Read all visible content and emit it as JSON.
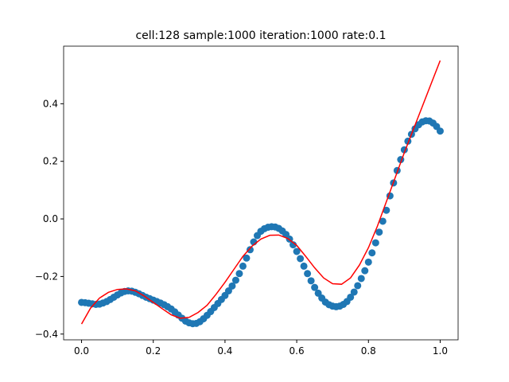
{
  "chart_data": {
    "type": "scatter",
    "title": "cell:128 sample:1000 iteration:1000 rate:0.1",
    "xlim": [
      -0.05,
      1.05
    ],
    "ylim": [
      -0.42,
      0.6
    ],
    "xticks": [
      {
        "value": 0,
        "label": "0.0"
      },
      0.2,
      0.4,
      0.6,
      0.8,
      {
        "value": 1,
        "label": "1.0"
      }
    ],
    "yticks": [
      {
        "value": -0.4,
        "label": "−0.4"
      },
      {
        "value": -0.2,
        "label": "−0.2"
      },
      {
        "value": 0,
        "label": "0.0"
      },
      0.2,
      0.4
    ],
    "series": [
      {
        "type": "scatter",
        "color": "#1f77b4",
        "x": [
          0,
          0.01,
          0.02,
          0.03,
          0.04,
          0.05,
          0.06,
          0.07,
          0.08,
          0.09,
          0.1,
          0.11,
          0.12,
          0.13,
          0.14,
          0.15,
          0.16,
          0.17,
          0.18,
          0.19,
          0.2,
          0.21,
          0.22,
          0.23,
          0.24,
          0.25,
          0.26,
          0.27,
          0.28,
          0.29,
          0.3,
          0.31,
          0.32,
          0.33,
          0.34,
          0.35,
          0.36,
          0.37,
          0.38,
          0.39,
          0.4,
          0.41,
          0.42,
          0.43,
          0.44,
          0.45,
          0.46,
          0.47,
          0.48,
          0.49,
          0.5,
          0.51,
          0.52,
          0.53,
          0.54,
          0.55,
          0.56,
          0.57,
          0.58,
          0.59,
          0.6,
          0.61,
          0.62,
          0.63,
          0.64,
          0.65,
          0.66,
          0.67,
          0.68,
          0.69,
          0.7,
          0.71,
          0.72,
          0.73,
          0.74,
          0.75,
          0.76,
          0.77,
          0.78,
          0.79,
          0.8,
          0.81,
          0.82,
          0.83,
          0.84,
          0.85,
          0.86,
          0.87,
          0.88,
          0.89,
          0.9,
          0.91,
          0.92,
          0.93,
          0.94,
          0.95,
          0.96,
          0.97,
          0.98,
          0.99,
          1
        ],
        "values": [
          -0.29,
          -0.291,
          -0.293,
          -0.295,
          -0.297,
          -0.296,
          -0.292,
          -0.287,
          -0.28,
          -0.272,
          -0.264,
          -0.257,
          -0.252,
          -0.25,
          -0.251,
          -0.255,
          -0.26,
          -0.266,
          -0.272,
          -0.277,
          -0.282,
          -0.287,
          -0.292,
          -0.298,
          -0.305,
          -0.313,
          -0.323,
          -0.334,
          -0.345,
          -0.355,
          -0.361,
          -0.364,
          -0.363,
          -0.357,
          -0.347,
          -0.335,
          -0.322,
          -0.308,
          -0.294,
          -0.28,
          -0.266,
          -0.25,
          -0.233,
          -0.213,
          -0.19,
          -0.164,
          -0.136,
          -0.107,
          -0.08,
          -0.058,
          -0.043,
          -0.034,
          -0.029,
          -0.027,
          -0.028,
          -0.033,
          -0.042,
          -0.054,
          -0.07,
          -0.09,
          -0.113,
          -0.138,
          -0.164,
          -0.19,
          -0.215,
          -0.238,
          -0.258,
          -0.275,
          -0.289,
          -0.298,
          -0.303,
          -0.305,
          -0.303,
          -0.297,
          -0.287,
          -0.272,
          -0.254,
          -0.232,
          -0.207,
          -0.18,
          -0.15,
          -0.118,
          -0.083,
          -0.046,
          -0.008,
          0.03,
          0.08,
          0.125,
          0.168,
          0.206,
          0.24,
          0.27,
          0.294,
          0.313,
          0.327,
          0.337,
          0.341,
          0.34,
          0.333,
          0.321,
          0.305
        ]
      },
      {
        "type": "line",
        "color": "#ff0000",
        "x": [
          0,
          0.025,
          0.05,
          0.075,
          0.1,
          0.125,
          0.15,
          0.175,
          0.2,
          0.225,
          0.25,
          0.275,
          0.3,
          0.325,
          0.35,
          0.375,
          0.4,
          0.425,
          0.45,
          0.475,
          0.5,
          0.525,
          0.55,
          0.575,
          0.6,
          0.625,
          0.65,
          0.675,
          0.7,
          0.725,
          0.75,
          0.775,
          0.8,
          0.825,
          0.85,
          0.875,
          0.9,
          0.925,
          0.95,
          0.975,
          1
        ],
        "values": [
          -0.365,
          -0.31,
          -0.275,
          -0.255,
          -0.245,
          -0.243,
          -0.25,
          -0.268,
          -0.29,
          -0.312,
          -0.333,
          -0.345,
          -0.342,
          -0.325,
          -0.3,
          -0.262,
          -0.22,
          -0.175,
          -0.13,
          -0.095,
          -0.07,
          -0.057,
          -0.056,
          -0.068,
          -0.092,
          -0.13,
          -0.17,
          -0.205,
          -0.225,
          -0.227,
          -0.205,
          -0.16,
          -0.1,
          -0.025,
          0.06,
          0.145,
          0.23,
          0.31,
          0.39,
          0.47,
          0.55
        ]
      }
    ]
  }
}
